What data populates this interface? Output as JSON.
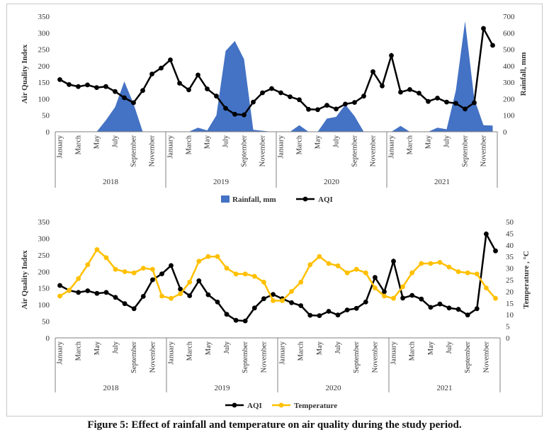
{
  "caption": "Figure 5: Effect of rainfall and temperature on air quality during the study period.",
  "colors": {
    "aqi": "#000000",
    "rainfall": "#4472C4",
    "temperature": "#FFC000",
    "axis": "#808080"
  },
  "chart_data": [
    {
      "type": "line",
      "ylabel": "Air Quality Index",
      "y2label": "Rainfall, mm",
      "ylim": [
        0,
        350
      ],
      "y2lim": [
        0,
        700
      ],
      "yticks": [
        0,
        50,
        100,
        150,
        200,
        250,
        300,
        350
      ],
      "y2ticks": [
        0,
        100,
        200,
        300,
        400,
        500,
        600,
        700
      ],
      "years": [
        "2018",
        "2019",
        "2020",
        "2021"
      ],
      "month_labels": [
        "January",
        "March",
        "May",
        "July",
        "September",
        "November"
      ],
      "legend": [
        "Rainfall, mm",
        "AQI"
      ],
      "legend_position": "bottom",
      "series": [
        {
          "name": "AQI",
          "axis": "left",
          "kind": "line",
          "values": [
            158,
            143,
            137,
            142,
            134,
            137,
            122,
            103,
            88,
            125,
            175,
            193,
            218,
            147,
            127,
            172,
            130,
            108,
            71,
            53,
            51,
            90,
            118,
            131,
            118,
            106,
            97,
            68,
            67,
            80,
            69,
            84,
            89,
            108,
            182,
            139,
            231,
            120,
            128,
            117,
            92,
            102,
            90,
            86,
            69,
            88,
            313,
            262
          ]
        },
        {
          "name": "Rainfall, mm",
          "axis": "right",
          "kind": "area",
          "values": [
            0,
            0,
            0,
            0,
            0,
            70,
            150,
            305,
            170,
            0,
            0,
            0,
            0,
            0,
            0,
            25,
            8,
            100,
            490,
            550,
            440,
            12,
            6,
            0,
            0,
            0,
            40,
            0,
            0,
            80,
            90,
            165,
            95,
            0,
            0,
            0,
            0,
            35,
            0,
            0,
            0,
            25,
            15,
            250,
            670,
            200,
            40,
            38
          ]
        }
      ]
    },
    {
      "type": "line",
      "ylabel": "Air Quality Index",
      "y2label": "Temperature , °C",
      "ylim": [
        0,
        350
      ],
      "y2lim": [
        0,
        50
      ],
      "yticks": [
        0,
        50,
        100,
        150,
        200,
        250,
        300,
        350
      ],
      "y2ticks": [
        0,
        5,
        10,
        15,
        20,
        25,
        30,
        35,
        40,
        45,
        50
      ],
      "years": [
        "2018",
        "2019",
        "2020",
        "2021"
      ],
      "month_labels": [
        "January",
        "March",
        "May",
        "July",
        "September",
        "November"
      ],
      "legend": [
        "AQI",
        "Temperature"
      ],
      "legend_position": "bottom",
      "series": [
        {
          "name": "AQI",
          "axis": "left",
          "kind": "line",
          "values": [
            158,
            143,
            137,
            142,
            134,
            137,
            122,
            103,
            88,
            125,
            175,
            193,
            218,
            147,
            127,
            172,
            130,
            108,
            71,
            53,
            51,
            90,
            118,
            131,
            118,
            106,
            97,
            68,
            67,
            80,
            69,
            84,
            89,
            108,
            182,
            139,
            231,
            120,
            128,
            117,
            92,
            102,
            90,
            86,
            69,
            88,
            313,
            262
          ]
        },
        {
          "name": "Temperature",
          "axis": "right",
          "kind": "line",
          "values": [
            18,
            20.5,
            25.5,
            31.5,
            38,
            34.5,
            29.5,
            28.5,
            28,
            30,
            29.5,
            18,
            17,
            19,
            24,
            33,
            35,
            35,
            30,
            27.5,
            27.5,
            26.5,
            24,
            16,
            16,
            20,
            24,
            31.5,
            35,
            32,
            31,
            28,
            29.5,
            28,
            21.5,
            18,
            17,
            22,
            28,
            32,
            32,
            32.5,
            30.5,
            28.5,
            28,
            27.5,
            21.5,
            17
          ]
        }
      ]
    }
  ]
}
